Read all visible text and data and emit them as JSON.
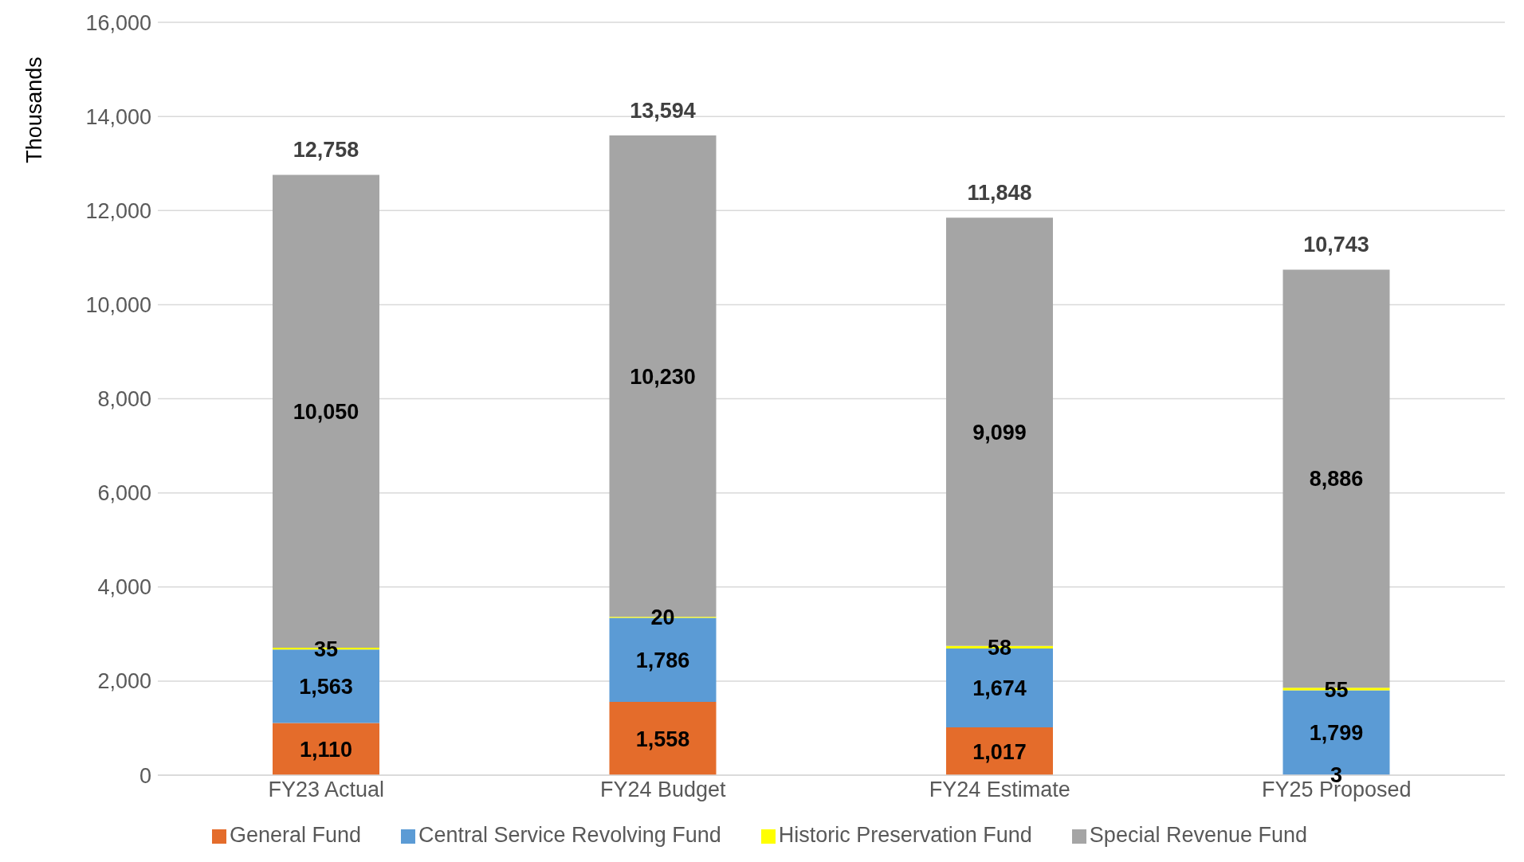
{
  "chart_data": {
    "type": "bar",
    "stacked": true,
    "ylabel": "Thousands",
    "categories": [
      "FY23 Actual",
      "FY24 Budget",
      "FY24 Estimate",
      "FY25 Proposed"
    ],
    "series": [
      {
        "name": "General Fund",
        "color": "#e46c2b",
        "values": [
          1110,
          1558,
          1017,
          3
        ],
        "value_labels": [
          "1,110",
          "1,558",
          "1,017",
          "3"
        ]
      },
      {
        "name": "Central Service Revolving Fund",
        "color": "#5b9bd5",
        "values": [
          1563,
          1786,
          1674,
          1799
        ],
        "value_labels": [
          "1,563",
          "1,786",
          "1,674",
          "1,799"
        ]
      },
      {
        "name": "Historic Preservation Fund",
        "color": "#ffff00",
        "values": [
          35,
          20,
          58,
          55
        ],
        "value_labels": [
          "35",
          "20",
          "58",
          "55"
        ]
      },
      {
        "name": "Special Revenue Fund",
        "color": "#a5a5a5",
        "values": [
          10050,
          10230,
          9099,
          8886
        ],
        "value_labels": [
          "10,050",
          "10,230",
          "9,099",
          "8,886"
        ]
      }
    ],
    "totals": [
      "12,758",
      "13,594",
      "11,848",
      "10,743"
    ],
    "ylim": [
      0,
      16000
    ],
    "yticks": [
      {
        "value": 0,
        "label": "0"
      },
      {
        "value": 2000,
        "label": "2,000"
      },
      {
        "value": 4000,
        "label": "4,000"
      },
      {
        "value": 6000,
        "label": "6,000"
      },
      {
        "value": 8000,
        "label": "8,000"
      },
      {
        "value": 10000,
        "label": "10,000"
      },
      {
        "value": 12000,
        "label": "12,000"
      },
      {
        "value": 14000,
        "label": "14,000"
      },
      {
        "value": 16000,
        "label": "16,000"
      }
    ],
    "grid": "y",
    "legend": "bottom"
  }
}
